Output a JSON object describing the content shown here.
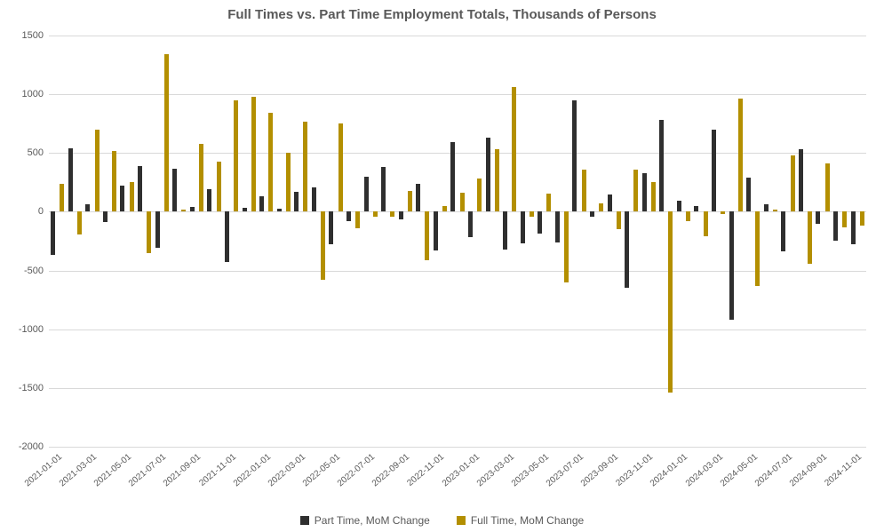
{
  "chart": {
    "type": "bar",
    "title": "Full Times vs. Part Time Employment Totals, Thousands of Persons",
    "title_fontsize": 15,
    "title_color": "#595959",
    "background_color": "#ffffff",
    "grid_color": "#d9d9d9",
    "label_fontsize": 11,
    "label_color": "#595959",
    "ylim": [
      -2000,
      1500
    ],
    "ytick_step": 500,
    "yticks": [
      -2000,
      -1500,
      -1000,
      -500,
      0,
      500,
      1000,
      1500
    ],
    "x_label_step": 2,
    "series": [
      {
        "name": "Part Time, MoM Change",
        "color": "#2f2f2f"
      },
      {
        "name": "Full Time, MoM Change",
        "color": "#b38f00"
      }
    ],
    "categories": [
      "2021-01-01",
      "2021-02-01",
      "2021-03-01",
      "2021-04-01",
      "2021-05-01",
      "2021-06-01",
      "2021-07-01",
      "2021-08-01",
      "2021-09-01",
      "2021-10-01",
      "2021-11-01",
      "2021-12-01",
      "2022-01-01",
      "2022-02-01",
      "2022-03-01",
      "2022-04-01",
      "2022-05-01",
      "2022-06-01",
      "2022-07-01",
      "2022-08-01",
      "2022-09-01",
      "2022-10-01",
      "2022-11-01",
      "2022-12-01",
      "2023-01-01",
      "2023-02-01",
      "2023-03-01",
      "2023-04-01",
      "2023-05-01",
      "2023-06-01",
      "2023-07-01",
      "2023-08-01",
      "2023-09-01",
      "2023-10-01",
      "2023-11-01",
      "2023-12-01",
      "2024-01-01",
      "2024-02-01",
      "2024-03-01",
      "2024-04-01",
      "2024-05-01",
      "2024-06-01",
      "2024-07-01",
      "2024-08-01",
      "2024-09-01",
      "2024-10-01",
      "2024-11-01"
    ],
    "values_part_time": [
      -370,
      540,
      60,
      -90,
      225,
      390,
      -310,
      365,
      40,
      190,
      -430,
      30,
      135,
      25,
      170,
      210,
      -280,
      -80,
      295,
      380,
      -65,
      240,
      -330,
      590,
      -215,
      630,
      -320,
      -270,
      -185,
      -260,
      945,
      -45,
      150,
      -650,
      330,
      780,
      97,
      52,
      700,
      -920,
      290,
      60,
      -340,
      530,
      -105,
      -250,
      -280
    ],
    "values_full_time": [
      240,
      -190,
      695,
      520,
      250,
      -350,
      1340,
      15,
      580,
      425,
      945,
      975,
      840,
      500,
      770,
      -580,
      755,
      -140,
      -40,
      -45,
      175,
      -410,
      45,
      165,
      280,
      530,
      1060,
      -40,
      155,
      -600,
      360,
      70,
      -150,
      360,
      250,
      -1540,
      -80,
      -205,
      -20,
      960,
      -630,
      16,
      480,
      -440,
      410,
      -130,
      -120
    ]
  }
}
